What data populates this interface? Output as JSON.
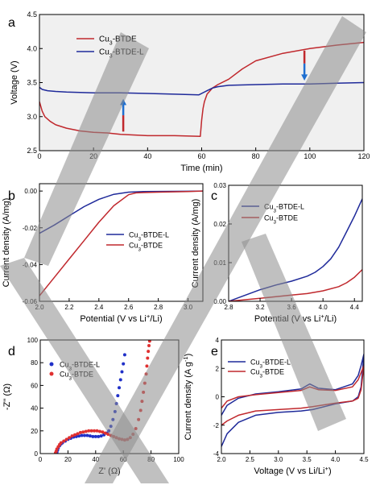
{
  "watermark": {
    "text": "VCH",
    "color": "#8c8c8c"
  },
  "colors": {
    "red": "#c0282d",
    "blue": "#1f2a9a",
    "red_dot": "#e03030",
    "blue_dot": "#2030c8",
    "plot_bg": "#f0f0f0"
  },
  "chart_data": [
    {
      "panel": "a",
      "type": "line",
      "xlabel": "Time (min)",
      "ylabel": "Voltage (V)",
      "xlim": [
        0,
        120
      ],
      "ylim": [
        2.5,
        4.5
      ],
      "xticks": [
        0,
        20,
        40,
        60,
        80,
        100,
        120
      ],
      "yticks": [
        2.5,
        3.0,
        3.5,
        4.0,
        4.5
      ],
      "legend_position": "top-left",
      "series": [
        {
          "name": "Cu3-BTDE",
          "label_main": "Cu",
          "label_sub": "3",
          "label_rest": "-BTDE",
          "color": "#c0282d",
          "x": [
            0,
            1,
            2,
            4,
            6,
            10,
            15,
            20,
            25,
            30,
            40,
            50,
            59.5,
            60,
            60.5,
            61,
            62,
            64,
            66,
            70,
            75,
            80,
            90,
            100,
            110,
            120
          ],
          "y": [
            3.22,
            3.08,
            3.0,
            2.93,
            2.88,
            2.83,
            2.79,
            2.77,
            2.76,
            2.74,
            2.72,
            2.72,
            2.71,
            2.95,
            3.12,
            3.22,
            3.33,
            3.42,
            3.47,
            3.55,
            3.7,
            3.82,
            3.93,
            4.0,
            4.05,
            4.09
          ]
        },
        {
          "name": "Cu3-BTDE-L",
          "label_main": "Cu",
          "label_sub": "3",
          "label_rest": "-BTDE-L",
          "color": "#1f2a9a",
          "x": [
            0,
            1,
            3,
            6,
            10,
            20,
            30,
            40,
            50,
            59,
            62,
            64,
            66,
            70,
            80,
            90,
            100,
            110,
            120
          ],
          "y": [
            3.43,
            3.4,
            3.38,
            3.37,
            3.36,
            3.35,
            3.35,
            3.34,
            3.33,
            3.32,
            3.38,
            3.42,
            3.44,
            3.46,
            3.47,
            3.48,
            3.48,
            3.49,
            3.5
          ]
        }
      ]
    },
    {
      "panel": "b",
      "type": "line",
      "xlabel_main": "Potential (V vs Li",
      "xlabel_sup": "+",
      "xlabel_rest": "/Li)",
      "ylabel": "Current density (A/mg)",
      "xlim": [
        2.0,
        3.1
      ],
      "ylim": [
        -0.06,
        0.004
      ],
      "xticks": [
        2.0,
        2.2,
        2.4,
        2.6,
        2.8,
        3.0
      ],
      "yticks": [
        0.0,
        -0.02,
        -0.04,
        -0.06
      ],
      "legend_position": "center-right",
      "series": [
        {
          "name": "Cu3-BTDE-L",
          "label_main": "Cu",
          "label_sub": "3",
          "label_rest": "-BTDE-L",
          "color": "#1f2a9a",
          "x": [
            2.0,
            2.1,
            2.2,
            2.3,
            2.4,
            2.5,
            2.6,
            2.7,
            2.8,
            3.0,
            3.1
          ],
          "y": [
            -0.023,
            -0.0185,
            -0.0135,
            -0.0085,
            -0.0045,
            -0.0018,
            -0.0006,
            -0.0003,
            -0.0002,
            -0.0001,
            0.0
          ]
        },
        {
          "name": "Cu3-BTDE",
          "label_main": "Cu",
          "label_sub": "3",
          "label_rest": "-BTDE",
          "color": "#c0282d",
          "x": [
            2.0,
            2.1,
            2.2,
            2.3,
            2.4,
            2.5,
            2.6,
            2.65,
            2.7,
            2.8,
            3.0,
            3.1
          ],
          "y": [
            -0.057,
            -0.047,
            -0.037,
            -0.027,
            -0.017,
            -0.008,
            -0.002,
            -0.001,
            -0.0008,
            -0.0006,
            -0.0003,
            0.0
          ]
        }
      ]
    },
    {
      "panel": "c",
      "type": "line",
      "xlabel_main": "Potential (V vs Li",
      "xlabel_sup": "+",
      "xlabel_rest": "/Li)",
      "ylabel": "Current density (A/mg)",
      "xlim": [
        2.8,
        4.5
      ],
      "ylim": [
        0,
        0.03
      ],
      "xticks": [
        2.8,
        3.2,
        3.6,
        4.0,
        4.4
      ],
      "yticks": [
        0.0,
        0.01,
        0.02,
        0.03
      ],
      "legend_position": "top-left",
      "series": [
        {
          "name": "Cu3-BTDE-L",
          "label_main": "Cu",
          "label_sub": "3",
          "label_rest": "-BTDE-L",
          "color": "#1f2a9a",
          "x": [
            2.8,
            3.0,
            3.2,
            3.4,
            3.6,
            3.8,
            3.9,
            4.0,
            4.1,
            4.2,
            4.3,
            4.4,
            4.5
          ],
          "y": [
            0.0,
            0.0015,
            0.003,
            0.0042,
            0.0052,
            0.0065,
            0.0075,
            0.009,
            0.011,
            0.014,
            0.018,
            0.022,
            0.0265
          ]
        },
        {
          "name": "Cu3-BTDE",
          "label_main": "Cu",
          "label_sub": "3",
          "label_rest": "-BTDE",
          "color": "#c0282d",
          "x": [
            2.8,
            3.0,
            3.2,
            3.4,
            3.6,
            3.8,
            4.0,
            4.2,
            4.3,
            4.4,
            4.5
          ],
          "y": [
            0.0,
            0.0004,
            0.0008,
            0.0012,
            0.0016,
            0.002,
            0.0027,
            0.0038,
            0.0048,
            0.0062,
            0.0082
          ]
        }
      ]
    },
    {
      "panel": "d",
      "type": "scatter",
      "xlabel": "Z' (Ω)",
      "ylabel": "-Z'' (Ω)",
      "xlim": [
        0,
        100
      ],
      "ylim": [
        0,
        100
      ],
      "xticks": [
        0,
        20,
        40,
        60,
        80,
        100
      ],
      "yticks": [
        0,
        20,
        40,
        60,
        80,
        100
      ],
      "legend_position": "top-left",
      "series": [
        {
          "name": "Cu3-BTDE-L",
          "label_main": "Cu",
          "label_sub": "3",
          "label_rest": "-BTDE-L",
          "color": "#2030c8",
          "x": [
            12,
            12.5,
            13,
            14,
            15,
            16,
            18,
            20,
            22,
            24,
            26,
            28,
            30,
            32,
            34,
            36,
            38,
            40,
            42,
            44,
            46,
            48,
            49.5,
            51,
            52.5,
            54,
            55,
            56,
            57,
            58,
            59,
            60,
            61
          ],
          "y": [
            1,
            3,
            5,
            7,
            8.5,
            9.5,
            11,
            12.5,
            13.5,
            14.5,
            15,
            15.5,
            16,
            16,
            16,
            15.5,
            15,
            15,
            15,
            15.5,
            16.5,
            18,
            20,
            24,
            30,
            37,
            44,
            51,
            58,
            65,
            72,
            79,
            87
          ]
        },
        {
          "name": "Cu3-BTDE",
          "label_main": "Cu",
          "label_sub": "3",
          "label_rest": "-BTDE",
          "color": "#e03030",
          "x": [
            11,
            11.5,
            12,
            13,
            14,
            15,
            17,
            19,
            21,
            23,
            25,
            27,
            29,
            31,
            33,
            35,
            37,
            39,
            41,
            43,
            45,
            47,
            49,
            51,
            53,
            55,
            57,
            59,
            61,
            63,
            65,
            67,
            69,
            71,
            72.5,
            73.5,
            74.5,
            75.5,
            76.5,
            77,
            77.5,
            78,
            78.5,
            79
          ],
          "y": [
            0.5,
            2,
            4,
            6,
            8,
            9.5,
            11,
            12.5,
            14,
            15.5,
            16.5,
            17.5,
            18.5,
            19,
            19.5,
            20,
            20,
            20,
            20,
            19.5,
            19,
            18,
            17,
            16,
            15,
            14,
            13,
            12.5,
            12,
            12.5,
            14,
            17,
            22,
            30,
            38,
            46,
            54,
            62,
            70,
            77,
            84,
            90,
            95,
            99
          ]
        }
      ]
    },
    {
      "panel": "e",
      "type": "line",
      "xlabel_main": "Voltage (V vs Li/Li",
      "xlabel_sup": "+",
      "xlabel_rest": ")",
      "ylabel_main": "Current density (A g",
      "ylabel_sup": "-1",
      "ylabel_rest": ")",
      "xlim": [
        2.0,
        4.5
      ],
      "ylim": [
        -4,
        4
      ],
      "xticks": [
        2.0,
        2.5,
        3.0,
        3.5,
        4.0,
        4.5
      ],
      "yticks": [
        -4,
        -2,
        0,
        2,
        4
      ],
      "legend_position": "top-left",
      "series": [
        {
          "name": "Cu3-BTDE-L",
          "label_main": "Cu",
          "label_sub": "3",
          "label_rest": "-BTDE-L",
          "color": "#1f2a9a",
          "x": [
            2.0,
            2.1,
            2.3,
            2.6,
            3.0,
            3.4,
            3.55,
            3.7,
            4.0,
            4.3,
            4.4,
            4.45,
            4.5,
            4.45,
            4.4,
            4.3,
            4.0,
            3.6,
            3.4,
            3.0,
            2.6,
            2.3,
            2.1,
            2.0
          ],
          "y": [
            -1.3,
            -0.6,
            -0.1,
            0.2,
            0.35,
            0.55,
            0.9,
            0.6,
            0.5,
            0.9,
            1.5,
            2.2,
            3.0,
            0.7,
            0.0,
            -0.3,
            -0.5,
            -0.9,
            -1.0,
            -1.1,
            -1.3,
            -1.8,
            -2.6,
            -3.5
          ]
        },
        {
          "name": "Cu3-BTDE",
          "label_main": "Cu",
          "label_sub": "3",
          "label_rest": "-BTDE",
          "color": "#c0282d",
          "x": [
            2.0,
            2.1,
            2.3,
            2.6,
            3.0,
            3.4,
            3.55,
            3.7,
            4.0,
            4.3,
            4.4,
            4.45,
            4.5,
            4.45,
            4.4,
            4.3,
            4.0,
            3.6,
            3.4,
            3.0,
            2.6,
            2.3,
            2.1,
            2.0
          ],
          "y": [
            -0.8,
            -0.3,
            0.0,
            0.15,
            0.3,
            0.45,
            0.7,
            0.5,
            0.45,
            0.7,
            1.2,
            1.7,
            2.2,
            0.5,
            -0.1,
            -0.3,
            -0.45,
            -0.7,
            -0.8,
            -0.9,
            -1.0,
            -1.3,
            -1.7,
            -2.0
          ]
        }
      ]
    }
  ]
}
